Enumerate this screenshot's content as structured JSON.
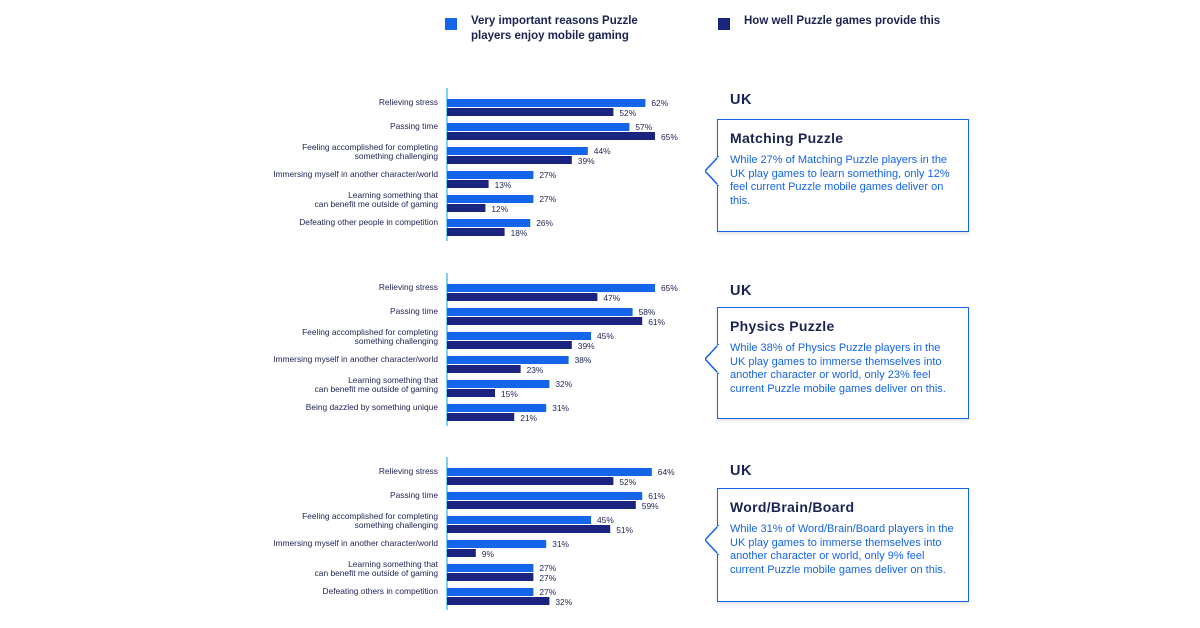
{
  "legend": [
    {
      "label": "Very important reasons Puzzle\nplayers enjoy mobile gaming",
      "color": "#1565e8"
    },
    {
      "label": "How well Puzzle games provide this",
      "color": "#1a237e"
    }
  ],
  "colors": {
    "series1": "#1565e8",
    "series2": "#1a237e",
    "axis": "#4fc3f7"
  },
  "panels": [
    {
      "region": "UK",
      "callout_title": "Matching Puzzle",
      "callout_body": "While 27% of Matching Puzzle players in the UK play games to learn something, only 12% feel current Puzzle mobile games deliver on this."
    },
    {
      "region": "UK",
      "callout_title": "Physics Puzzle",
      "callout_body": "While 38% of Physics Puzzle players in the UK play games to immerse themselves into another character or world, only 23% feel current Puzzle mobile games deliver on this."
    },
    {
      "region": "UK",
      "callout_title": "Word/Brain/Board",
      "callout_body": "While 31% of Word/Brain/Board players in the UK play games to immerse themselves into another character or world, only 9% feel current Puzzle mobile games deliver on this."
    }
  ],
  "chart_data": [
    {
      "type": "bar",
      "orientation": "horizontal",
      "categories": [
        "Relieving stress",
        "Passing time",
        "Feeling accomplished for completing\nsomething challenging",
        "Immersing myself in another character/world",
        "Learning something that\ncan benefit me outside of gaming",
        "Defeating other people in competition"
      ],
      "series": [
        {
          "name": "Very important reasons Puzzle players enjoy mobile gaming",
          "values": [
            62,
            57,
            44,
            27,
            27,
            26
          ]
        },
        {
          "name": "How well Puzzle games provide this",
          "values": [
            52,
            65,
            39,
            13,
            12,
            18
          ]
        }
      ],
      "value_suffix": "%"
    },
    {
      "type": "bar",
      "orientation": "horizontal",
      "categories": [
        "Relieving stress",
        "Passing time",
        "Feeling accomplished for completing\nsomething challenging",
        "Immersing myself in another character/world",
        "Learning something that\ncan benefit me outside of gaming",
        "Being dazzled by something unique"
      ],
      "series": [
        {
          "name": "Very important reasons Puzzle players enjoy mobile gaming",
          "values": [
            65,
            58,
            45,
            38,
            32,
            31
          ]
        },
        {
          "name": "How well Puzzle games provide this",
          "values": [
            47,
            61,
            39,
            23,
            15,
            21
          ]
        }
      ],
      "value_suffix": "%"
    },
    {
      "type": "bar",
      "orientation": "horizontal",
      "categories": [
        "Relieving stress",
        "Passing time",
        "Feeling accomplished for completing\nsomething challenging",
        "Immersing myself in another character/world",
        "Learning something that\ncan benefit me outside of gaming",
        "Defeating others in competition"
      ],
      "series": [
        {
          "name": "Very important reasons Puzzle players enjoy mobile gaming",
          "values": [
            64,
            61,
            45,
            31,
            27,
            27
          ]
        },
        {
          "name": "How well Puzzle games provide this",
          "values": [
            52,
            59,
            51,
            9,
            27,
            32
          ]
        }
      ],
      "value_suffix": "%"
    }
  ]
}
